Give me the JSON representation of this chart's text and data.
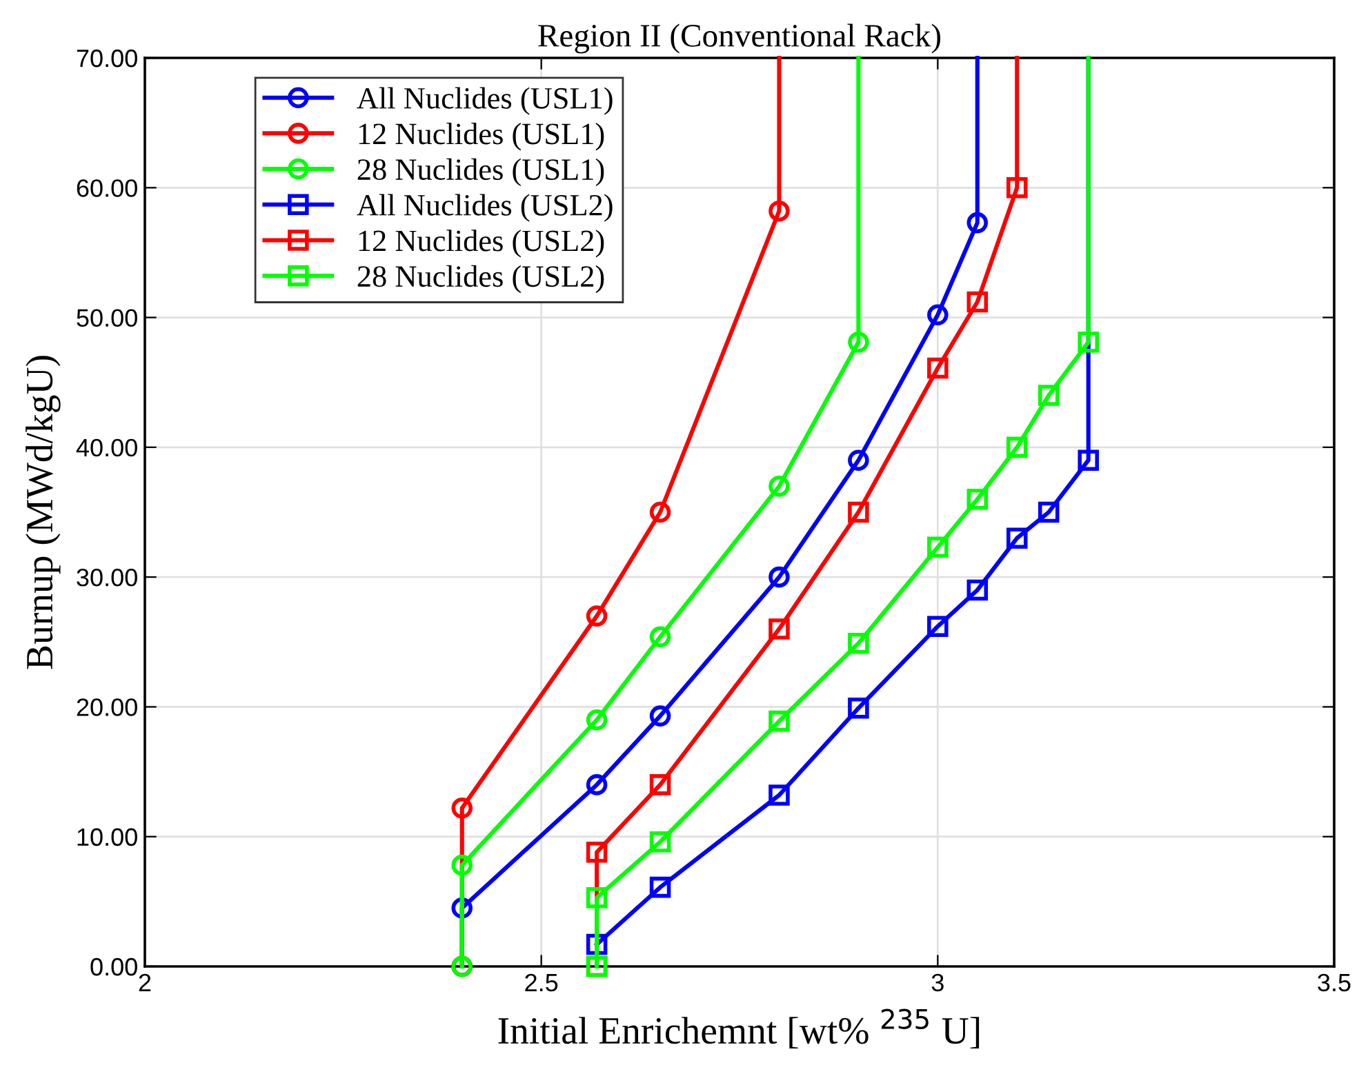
{
  "chart_data": {
    "type": "line",
    "title": "Region II (Conventional Rack)",
    "xlabel": "Initial Enrichemnt [wt% $^{235}$ U]",
    "ylabel": "Burnup (MWd/kgU)",
    "xlim": [
      2,
      3.5
    ],
    "xticks": [
      2,
      2.5,
      3,
      3.5
    ],
    "ylim": [
      0,
      70
    ],
    "yticks": [
      {
        "value": 0,
        "label": "0.00"
      },
      {
        "value": 10,
        "label": "10.00"
      },
      {
        "value": 20,
        "label": "20.00"
      },
      {
        "value": 30,
        "label": "30.00"
      },
      {
        "value": 40,
        "label": "40.00"
      },
      {
        "value": 50,
        "label": "50.00"
      },
      {
        "value": 60,
        "label": "60.00"
      },
      {
        "value": 70,
        "label": "70.00"
      }
    ],
    "grid": true,
    "legend": "top left",
    "line_style": "solid",
    "series": [
      {
        "name": "All Nuclides (USL1)",
        "color": "#0000ff",
        "marker": "circle",
        "x": [
          2.4,
          2.4,
          2.57,
          2.65,
          2.8,
          2.9,
          3.0,
          3.05,
          3.05
        ],
        "values": [
          0,
          4.5,
          14,
          19.3,
          30,
          39,
          50.2,
          57.3,
          70
        ]
      },
      {
        "name": "12 Nuclides (USL1)",
        "color": "#ff0000",
        "marker": "circle",
        "x": [
          2.4,
          2.4,
          2.57,
          2.65,
          2.8,
          2.8
        ],
        "values": [
          0,
          12.2,
          27,
          35,
          58.2,
          70
        ]
      },
      {
        "name": "28 Nuclides (USL1)",
        "color": "#00ff00",
        "marker": "circle",
        "x": [
          2.4,
          2.4,
          2.57,
          2.65,
          2.8,
          2.9,
          2.9
        ],
        "values": [
          0,
          7.8,
          19,
          25.4,
          37,
          48.1,
          70
        ]
      },
      {
        "name": "All Nuclides (USL2)",
        "color": "#0000ff",
        "marker": "square",
        "x": [
          2.57,
          2.65,
          2.8,
          2.9,
          3.0,
          3.05,
          3.1,
          3.14,
          3.19,
          3.19
        ],
        "values": [
          1.7,
          6.1,
          13.2,
          19.9,
          26.2,
          29,
          33,
          35,
          39,
          70
        ]
      },
      {
        "name": "12 Nuclides (USL2)",
        "color": "#ff0000",
        "marker": "square",
        "x": [
          2.57,
          2.57,
          2.65,
          2.8,
          2.9,
          3.0,
          3.05,
          3.1,
          3.1
        ],
        "values": [
          0,
          8.8,
          14,
          26,
          35,
          46.1,
          51.2,
          60,
          70
        ]
      },
      {
        "name": "28 Nuclides (USL2)",
        "color": "#00ff00",
        "marker": "square",
        "x": [
          2.57,
          2.57,
          2.65,
          2.8,
          2.9,
          3.0,
          3.05,
          3.1,
          3.14,
          3.19,
          3.19
        ],
        "values": [
          0,
          5.3,
          9.6,
          18.9,
          24.9,
          32.3,
          36,
          40,
          44,
          48.1,
          70
        ]
      }
    ]
  }
}
